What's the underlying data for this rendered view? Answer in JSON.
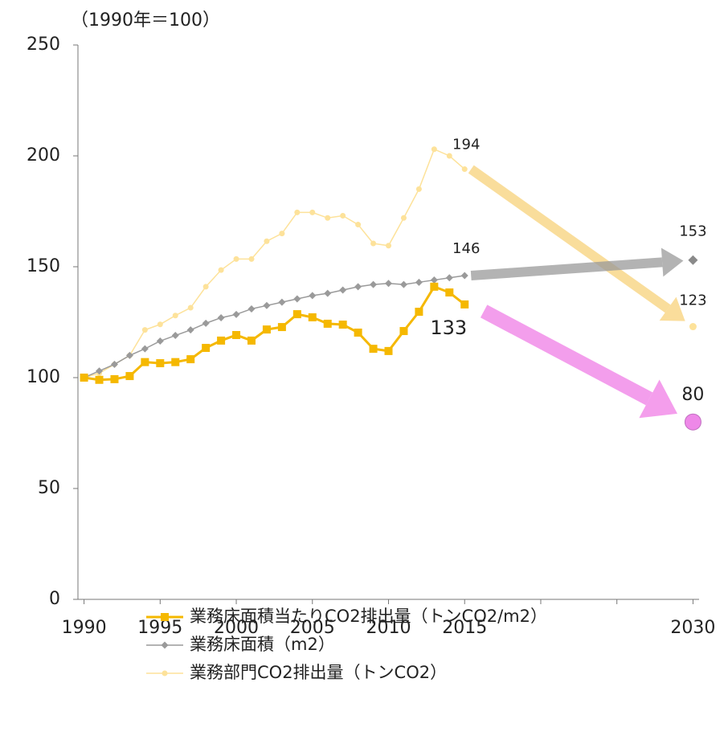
{
  "chart_data": {
    "type": "line",
    "unit_label": "（1990年＝100）",
    "x": [
      1990,
      1991,
      1992,
      1993,
      1994,
      1995,
      1996,
      1997,
      1998,
      1999,
      2000,
      2001,
      2002,
      2003,
      2004,
      2005,
      2006,
      2007,
      2008,
      2009,
      2010,
      2011,
      2012,
      2013,
      2014,
      2015
    ],
    "target_x": 2030,
    "series": [
      {
        "name": "業務床面積当たりCO2排出量（トンCO2/m2）",
        "color": "#f5b800",
        "marker": "square",
        "values": [
          100,
          99,
          99.3,
          100.7,
          107,
          106.5,
          107,
          108.3,
          113.4,
          116.7,
          119.2,
          116.7,
          121.7,
          122.8,
          128.6,
          127.2,
          124.3,
          123.9,
          120.3,
          113,
          112,
          121,
          129.7,
          141,
          138.4,
          133
        ],
        "target_value": 80,
        "target_color": "#ee88e8",
        "arrow_color": "#f07ee6"
      },
      {
        "name": "業務床面積（m2）",
        "color": "#9a9a9a",
        "marker": "diamond",
        "values": [
          100,
          103,
          106,
          110,
          113,
          116.5,
          119,
          121.5,
          124.5,
          127,
          128.5,
          131,
          132.5,
          134,
          135.5,
          137,
          138,
          139.5,
          141,
          142,
          142.5,
          142,
          143,
          144,
          145,
          146
        ],
        "target_value": 153,
        "target_color": "#8a8a8a",
        "arrow_color": "#9a9a9a"
      },
      {
        "name": "業務部門CO2排出量（トンCO2）",
        "color": "#fde29a",
        "marker": "circle",
        "values": [
          100,
          102,
          106,
          110,
          121.5,
          124,
          128,
          131.5,
          141,
          148.5,
          153.5,
          153.5,
          161.5,
          165,
          174.5,
          174.5,
          172,
          173,
          169,
          160.5,
          159.5,
          172,
          185,
          203,
          200,
          194
        ],
        "target_value": 123,
        "target_color": "#fde29a",
        "arrow_color": "#f8d27a"
      }
    ],
    "xlim": [
      1989.6,
      2030.4
    ],
    "xticks": [
      1990,
      1995,
      2000,
      2005,
      2010,
      2015,
      2030
    ],
    "xminor_ticks": [
      2020,
      2025
    ],
    "ylim": [
      0,
      250
    ],
    "yticks": [
      0,
      50,
      100,
      150,
      200,
      250
    ],
    "grid": false,
    "legend": "bottom"
  }
}
